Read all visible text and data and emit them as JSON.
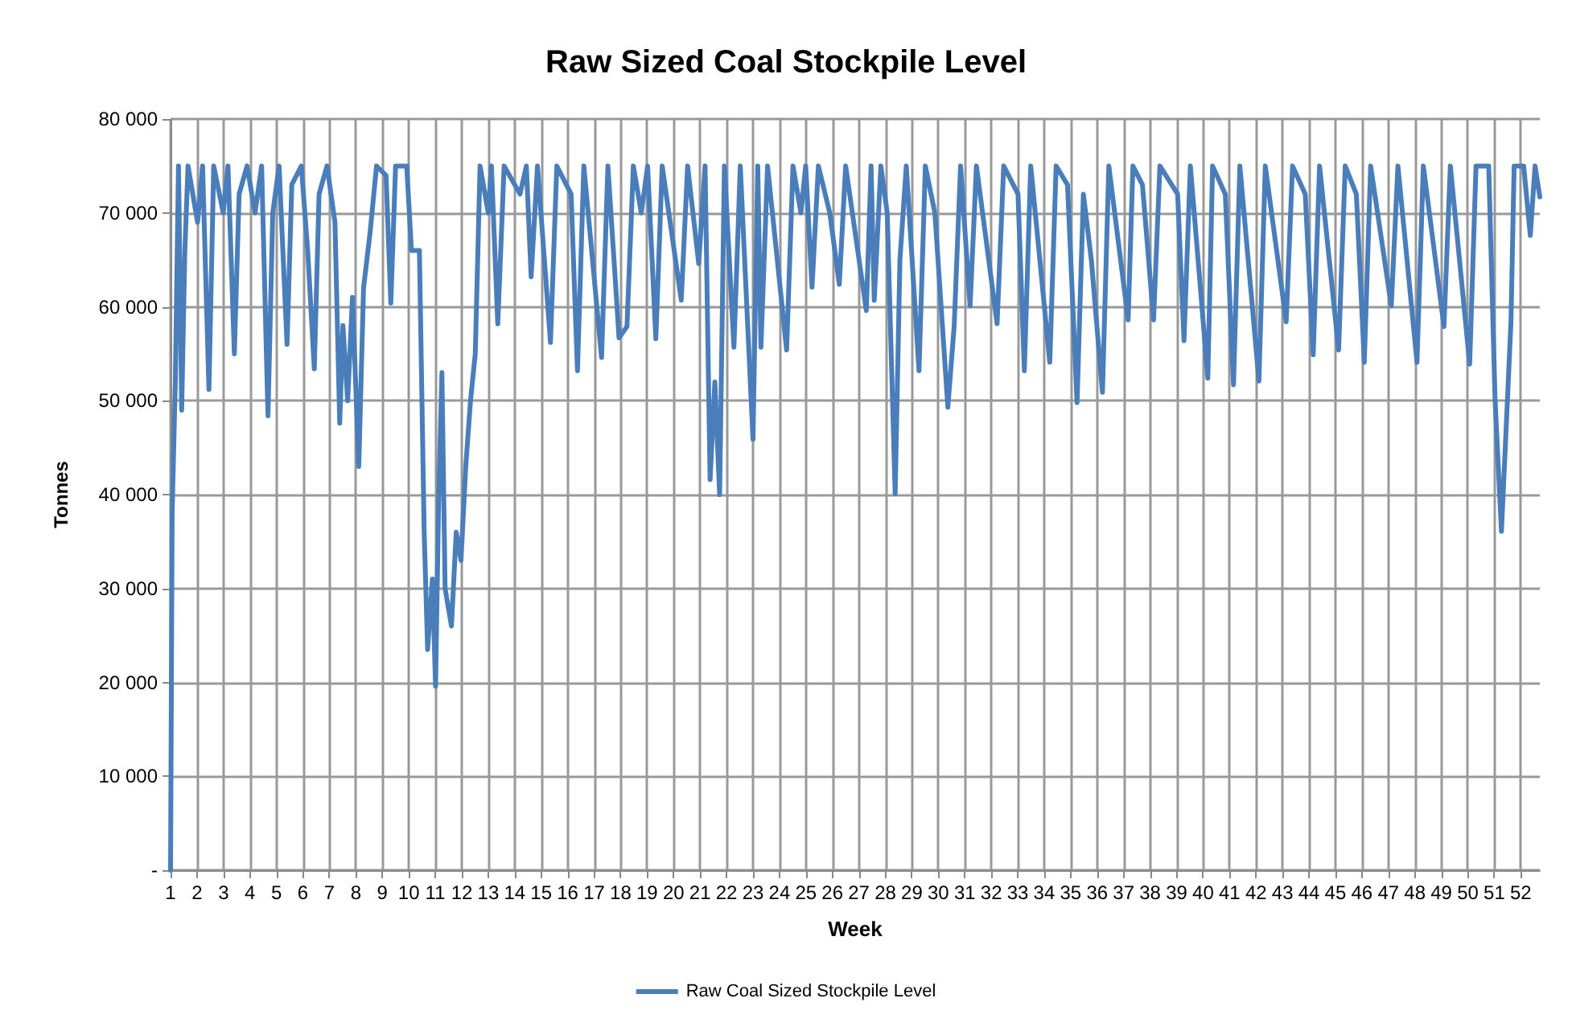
{
  "chart_data": {
    "type": "line",
    "title": "Raw Sized Coal Stockpile Level",
    "xlabel": "Week",
    "ylabel": "Tonnes",
    "x": [
      1.0,
      1.06,
      1.18,
      1.3,
      1.42,
      1.54,
      1.66,
      2.02,
      2.21,
      2.45,
      2.63,
      2.99,
      3.17,
      3.41,
      3.59,
      3.89,
      4.19,
      4.44,
      4.68,
      4.86,
      5.1,
      5.4,
      5.58,
      5.94,
      6.18,
      6.43,
      6.61,
      6.91,
      7.21,
      7.39,
      7.51,
      7.69,
      7.87,
      8.11,
      8.29,
      8.54,
      8.78,
      9.14,
      9.32,
      9.5,
      9.92,
      10.1,
      10.4,
      10.58,
      10.71,
      10.89,
      11.01,
      11.13,
      11.25,
      11.37,
      11.61,
      11.79,
      11.97,
      12.15,
      12.33,
      12.51,
      12.69,
      13.0,
      13.12,
      13.36,
      13.6,
      14.2,
      14.44,
      14.62,
      14.86,
      15.35,
      15.59,
      16.13,
      16.37,
      16.61,
      17.28,
      17.52,
      17.94,
      18.24,
      18.48,
      18.78,
      19.02,
      19.33,
      19.57,
      20.29,
      20.53,
      20.95,
      21.19,
      21.38,
      21.56,
      21.74,
      21.92,
      22.28,
      22.52,
      23.0,
      23.18,
      23.3,
      23.55,
      24.27,
      24.51,
      24.81,
      24.99,
      25.23,
      25.47,
      25.9,
      26.26,
      26.5,
      27.28,
      27.46,
      27.58,
      27.83,
      28.07,
      28.37,
      28.55,
      28.79,
      29.27,
      29.51,
      29.87,
      30.36,
      30.6,
      30.84,
      31.2,
      31.44,
      32.22,
      32.47,
      33.01,
      33.25,
      33.49,
      34.21,
      34.45,
      34.88,
      35.24,
      35.48,
      35.78,
      36.2,
      36.44,
      37.17,
      37.35,
      37.71,
      38.13,
      38.37,
      39.04,
      39.28,
      39.52,
      40.18,
      40.36,
      40.84,
      41.15,
      41.39,
      42.11,
      42.35,
      43.14,
      43.38,
      43.86,
      44.16,
      44.4,
      45.12,
      45.37,
      45.79,
      46.09,
      46.33,
      47.11,
      47.36,
      48.08,
      48.32,
      49.1,
      49.34,
      50.07,
      50.31,
      50.79,
      51.03,
      51.27,
      51.51,
      51.63,
      51.75,
      52.11,
      52.36,
      52.54,
      52.72
    ],
    "series": [
      {
        "name": "Raw Coal Sized Stockpile Level",
        "color": "#4a7ebb",
        "values": [
          0,
          38000,
          52000,
          75000,
          49000,
          66000,
          75000,
          69000,
          75000,
          51200,
          75000,
          70000,
          75000,
          55000,
          72000,
          75000,
          70000,
          75000,
          48400,
          70000,
          75000,
          56000,
          73000,
          75000,
          66000,
          53400,
          72000,
          75000,
          69000,
          47600,
          58000,
          50000,
          61000,
          43000,
          62000,
          68000,
          75000,
          74000,
          60400,
          75000,
          75000,
          66000,
          66000,
          36000,
          23500,
          31000,
          19600,
          40000,
          53000,
          30000,
          26000,
          36000,
          33000,
          43000,
          50000,
          55000,
          75000,
          70000,
          75000,
          58200,
          75000,
          72000,
          75000,
          63200,
          75000,
          56200,
          75000,
          72000,
          53200,
          75000,
          54600,
          75000,
          56700,
          57900,
          75000,
          70000,
          75000,
          56600,
          75000,
          60700,
          75000,
          64600,
          75000,
          41600,
          52000,
          40000,
          75000,
          55700,
          75000,
          45900,
          75000,
          55700,
          75000,
          55400,
          75000,
          70000,
          75000,
          62100,
          75000,
          70000,
          62400,
          75000,
          59600,
          75000,
          60700,
          75000,
          70000,
          40100,
          65000,
          75000,
          53200,
          75000,
          70000,
          49300,
          58000,
          75000,
          60100,
          75000,
          58200,
          75000,
          72000,
          53200,
          75000,
          54100,
          75000,
          73000,
          49800,
          72000,
          65000,
          50900,
          75000,
          58600,
          75000,
          73000,
          58600,
          75000,
          72000,
          56400,
          75000,
          52400,
          75000,
          72000,
          51700,
          75000,
          52100,
          75000,
          58400,
          75000,
          72000,
          54900,
          75000,
          55400,
          75000,
          72000,
          54100,
          75000,
          60100,
          75000,
          54100,
          75000,
          57900,
          75000,
          53900,
          75000,
          75000,
          50100,
          36100,
          50900,
          58400,
          75000,
          75000,
          67600,
          75000,
          71700
        ]
      }
    ],
    "xlim": [
      1,
      52.72
    ],
    "xticks": [
      1,
      2,
      3,
      4,
      5,
      6,
      7,
      8,
      9,
      10,
      11,
      12,
      13,
      14,
      15,
      16,
      17,
      18,
      19,
      20,
      21,
      22,
      23,
      24,
      25,
      26,
      27,
      28,
      29,
      30,
      31,
      32,
      33,
      34,
      35,
      36,
      37,
      38,
      39,
      40,
      41,
      42,
      43,
      44,
      45,
      46,
      47,
      48,
      49,
      50,
      51,
      52
    ],
    "ylim": [
      0,
      80000
    ],
    "yticks": [
      {
        "value": 0,
        "label": "-"
      },
      {
        "value": 10000,
        "label": "10 000"
      },
      {
        "value": 20000,
        "label": "20 000"
      },
      {
        "value": 30000,
        "label": "30 000"
      },
      {
        "value": 40000,
        "label": "40 000"
      },
      {
        "value": 50000,
        "label": "50 000"
      },
      {
        "value": 60000,
        "label": "60 000"
      },
      {
        "value": 70000,
        "label": "70 000"
      },
      {
        "value": 80000,
        "label": "80 000"
      }
    ],
    "grid": true,
    "legend": "bottom",
    "marker": "none",
    "line_style": "solid"
  }
}
